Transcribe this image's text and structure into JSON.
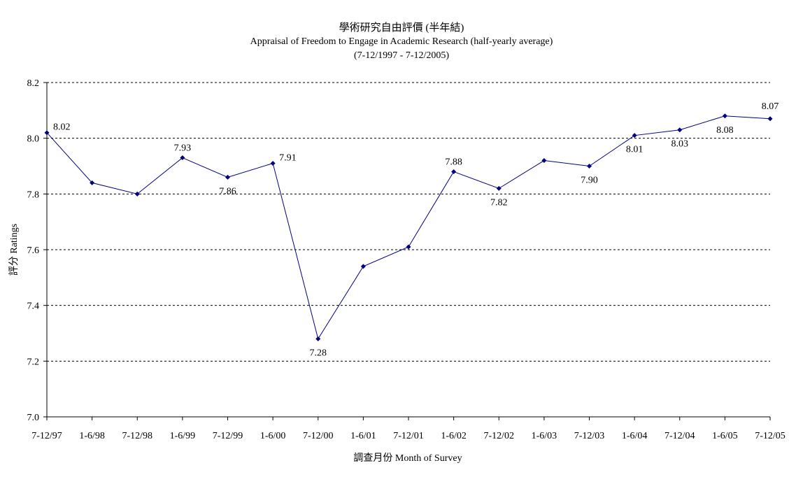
{
  "chart_data": {
    "type": "line",
    "title": "學術研究自由評價 (半年結)",
    "subtitle": "Appraisal of Freedom to Engage in Academic Research (half-yearly average)",
    "period": "(7-12/1997 - 7-12/2005)",
    "xlabel": "調查月份 Month of Survey",
    "ylabel": "評分 Ratings",
    "ylim": [
      7.0,
      8.2
    ],
    "yticks": [
      "7.0",
      "7.2",
      "7.4",
      "7.6",
      "7.8",
      "8.0",
      "8.2"
    ],
    "grid": true,
    "categories": [
      "7-12/97",
      "1-6/98",
      "7-12/98",
      "1-6/99",
      "7-12/99",
      "1-6/00",
      "7-12/00",
      "1-6/01",
      "7-12/01",
      "1-6/02",
      "7-12/02",
      "1-6/03",
      "7-12/03",
      "1-6/04",
      "7-12/04",
      "1-6/05",
      "7-12/05"
    ],
    "series": [
      {
        "values": [
          8.02,
          7.84,
          7.8,
          7.93,
          7.86,
          7.91,
          7.28,
          7.54,
          7.61,
          7.88,
          7.82,
          7.92,
          7.9,
          8.01,
          8.03,
          8.08,
          8.07
        ],
        "labels": [
          "8.02",
          "",
          "",
          "7.93",
          "7.86",
          "7.91",
          "7.28",
          "",
          "",
          "7.88",
          "7.82",
          "",
          "7.90",
          "8.01",
          "8.03",
          "8.08",
          "8.07"
        ],
        "color": "#000080"
      }
    ]
  }
}
